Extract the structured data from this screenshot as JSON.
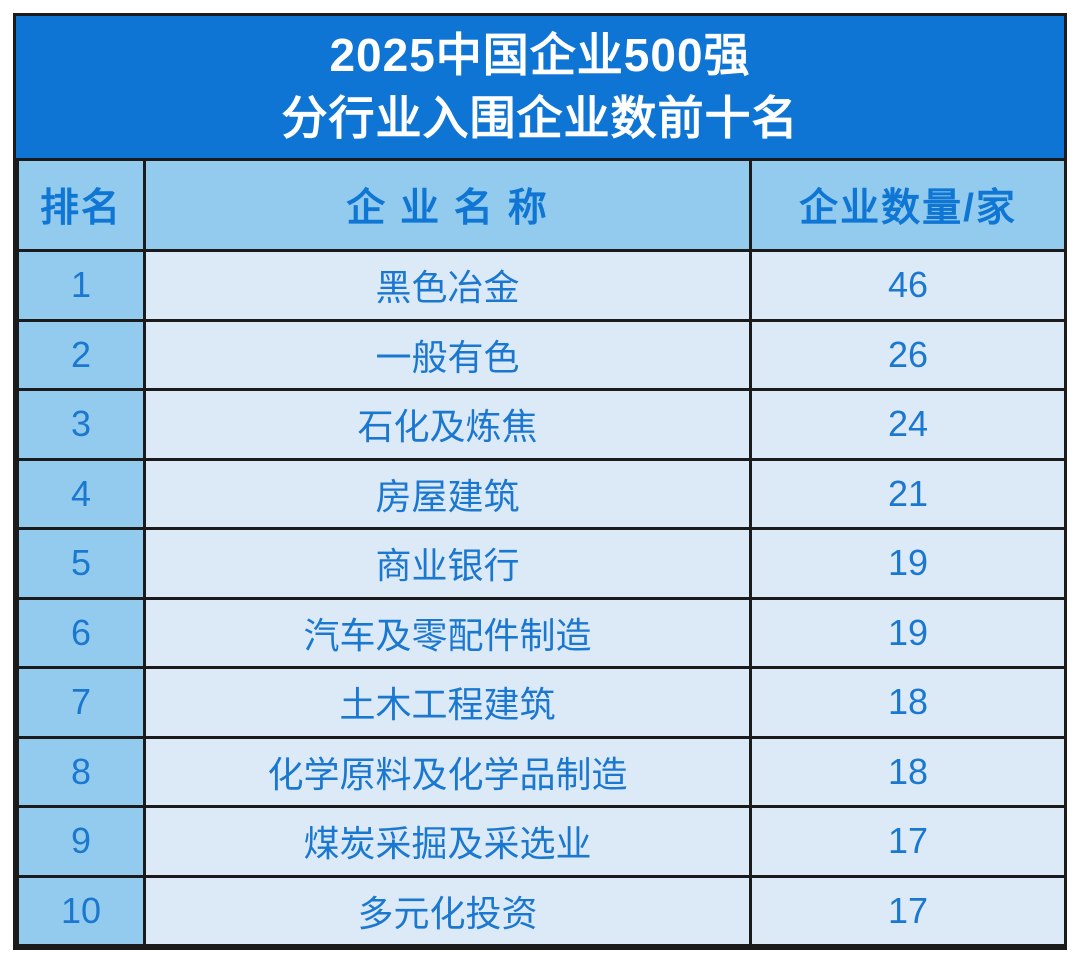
{
  "colors": {
    "page_bg": "#ffffff",
    "title_bg": "#0e75d5",
    "title_text": "#ffffff",
    "header_bg": "#93cbee",
    "rank_bg": "#93cbee",
    "cell_bg": "#dce9f6",
    "header_text": "#0f76d4",
    "cell_text": "#1b78d0",
    "border": "#1b1b1b"
  },
  "title": {
    "line1": "2025中国企业500强",
    "line2": "分行业入围企业数前十名"
  },
  "table": {
    "columns": [
      "排名",
      "企 业 名 称",
      "企业数量/家"
    ],
    "rows": [
      {
        "rank": "1",
        "name": "黑色冶金",
        "count": "46"
      },
      {
        "rank": "2",
        "name": "一般有色",
        "count": "26"
      },
      {
        "rank": "3",
        "name": "石化及炼焦",
        "count": "24"
      },
      {
        "rank": "4",
        "name": "房屋建筑",
        "count": "21"
      },
      {
        "rank": "5",
        "name": "商业银行",
        "count": "19"
      },
      {
        "rank": "6",
        "name": "汽车及零配件制造",
        "count": "19"
      },
      {
        "rank": "7",
        "name": "土木工程建筑",
        "count": "18"
      },
      {
        "rank": "8",
        "name": "化学原料及化学品制造",
        "count": "18"
      },
      {
        "rank": "9",
        "name": "煤炭采掘及采选业",
        "count": "17"
      },
      {
        "rank": "10",
        "name": "多元化投资",
        "count": "17"
      }
    ]
  },
  "chart_data": {
    "type": "table",
    "title": "2025中国企业500强 分行业入围企业数前十名",
    "columns": [
      "排名",
      "企业名称",
      "企业数量/家"
    ],
    "categories": [
      "黑色冶金",
      "一般有色",
      "石化及炼焦",
      "房屋建筑",
      "商业银行",
      "汽车及零配件制造",
      "土木工程建筑",
      "化学原料及化学品制造",
      "煤炭采掘及采选业",
      "多元化投资"
    ],
    "values": [
      46,
      26,
      24,
      21,
      19,
      19,
      18,
      18,
      17,
      17
    ],
    "ranks": [
      1,
      2,
      3,
      4,
      5,
      6,
      7,
      8,
      9,
      10
    ]
  }
}
